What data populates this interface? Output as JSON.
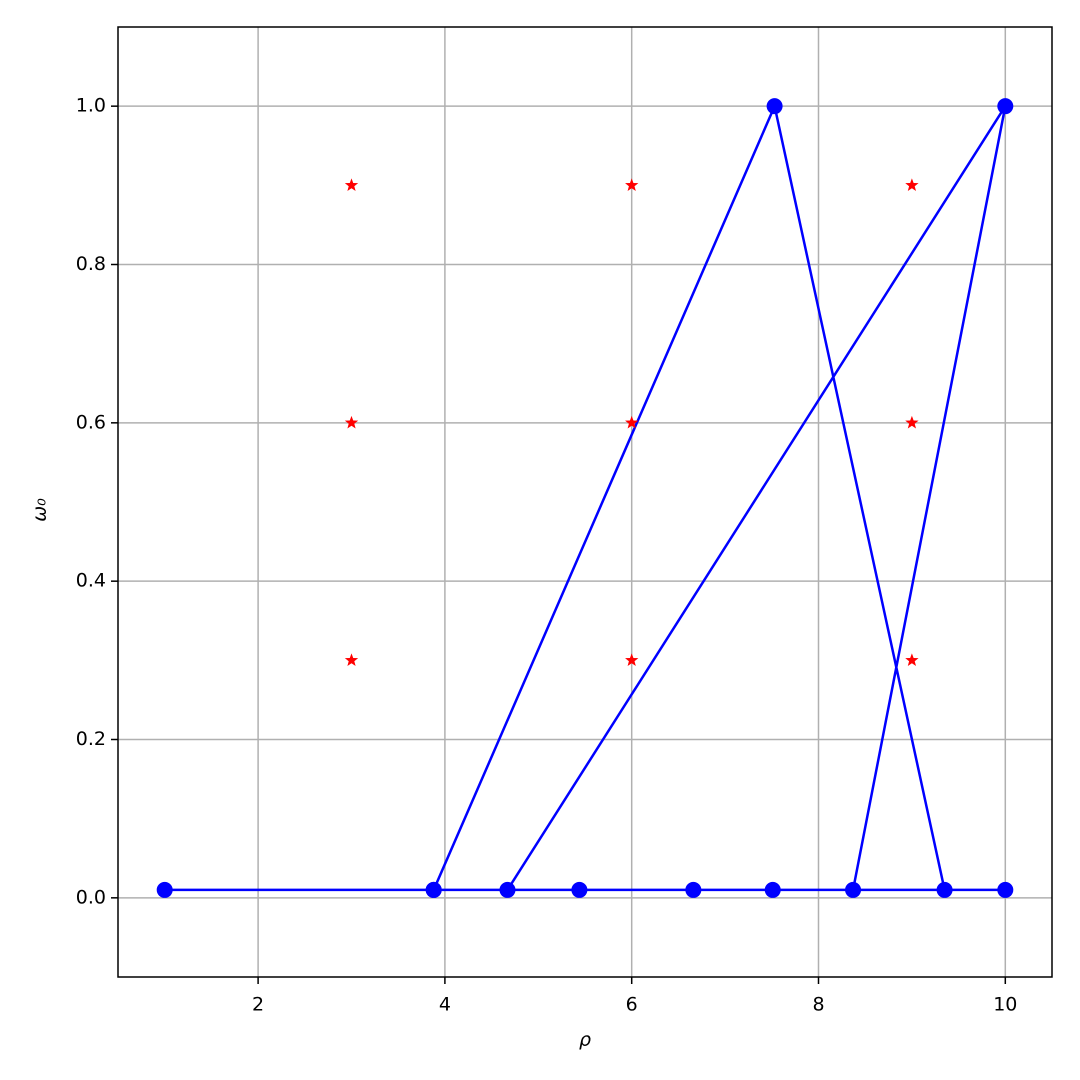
{
  "chart_data": {
    "type": "line",
    "xlabel": "ρ",
    "ylabel": "ω₀",
    "xlim": [
      0.5,
      10.5
    ],
    "ylim": [
      -0.1,
      1.1
    ],
    "xticks": [
      2,
      4,
      6,
      8,
      10
    ],
    "yticks": [
      {
        "value": 0,
        "label": "0.0"
      },
      0.2,
      0.4,
      0.6,
      0.8,
      {
        "value": 1,
        "label": "1.0"
      }
    ],
    "grid": true,
    "series": [
      {
        "color": "#0000ff",
        "marker": "circle",
        "line": true,
        "x": [
          1,
          3.88,
          7.53,
          9.35,
          8.37,
          10,
          4.67,
          3.88,
          5.44,
          6.66,
          7.51,
          10
        ],
        "values": [
          0.01,
          0.01,
          1.0,
          0.01,
          0.01,
          1.0,
          0.01,
          0.01,
          0.01,
          0.01,
          0.01,
          0.01
        ]
      },
      {
        "color": "#ff0000",
        "marker": "star",
        "line": false,
        "x": [
          3,
          3,
          3,
          6,
          6,
          6,
          9,
          9,
          9
        ],
        "values": [
          0.3,
          0.6,
          0.9,
          0.3,
          0.6,
          0.9,
          0.3,
          0.6,
          0.9
        ]
      }
    ]
  }
}
